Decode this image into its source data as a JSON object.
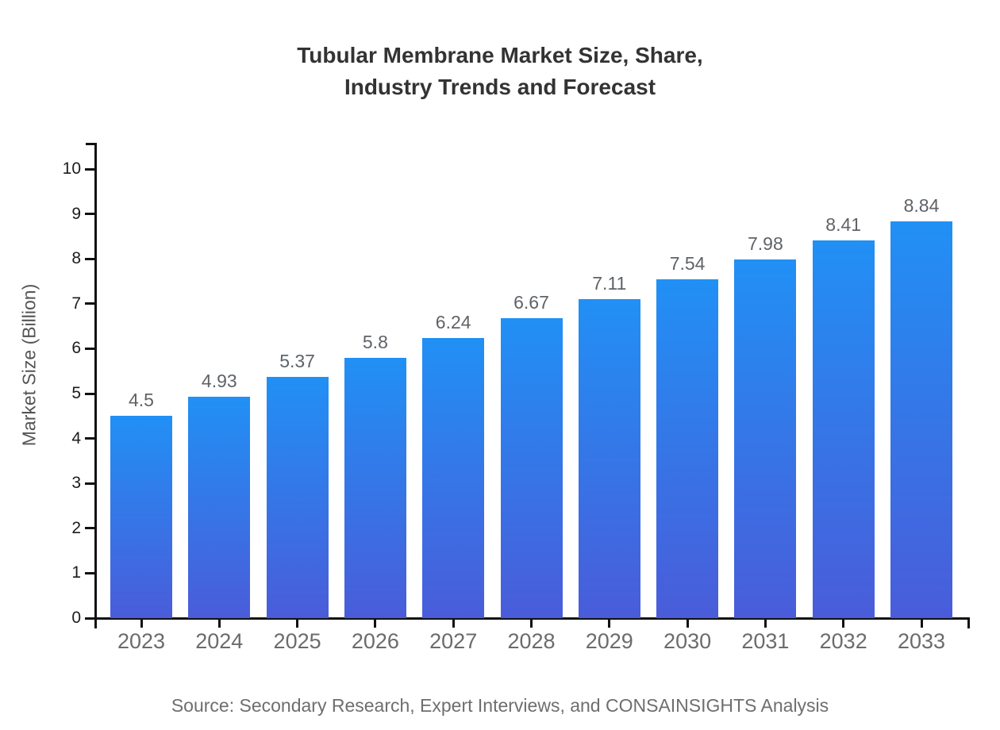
{
  "chart_data": {
    "type": "bar",
    "title": "Tubular Membrane Market Size, Share, Industry Trends and Forecast",
    "title_lines": [
      "Tubular Membrane Market Size, Share,",
      "Industry Trends and Forecast"
    ],
    "categories": [
      "2023",
      "2024",
      "2025",
      "2026",
      "2027",
      "2028",
      "2029",
      "2030",
      "2031",
      "2032",
      "2033"
    ],
    "values": [
      4.5,
      4.93,
      5.37,
      5.8,
      6.24,
      6.67,
      7.11,
      7.54,
      7.98,
      8.41,
      8.84
    ],
    "value_labels": [
      "4.5",
      "4.93",
      "5.37",
      "5.8",
      "6.24",
      "6.67",
      "7.11",
      "7.54",
      "7.98",
      "8.41",
      "8.84"
    ],
    "xlabel": "",
    "ylabel": "Market Size (Billion)",
    "ylim": [
      0,
      10
    ],
    "yticks": [
      0,
      1,
      2,
      3,
      4,
      5,
      6,
      7,
      8,
      9,
      10
    ],
    "grid": false,
    "legend": false,
    "bar_color_gradient": [
      "#2190f5",
      "#4a5cd9"
    ]
  },
  "source": "Source: Secondary Research, Expert Interviews, and CONSAINSIGHTS Analysis",
  "colors": {
    "background": "#ffffff",
    "bar_top": "#2190f5",
    "bar_bottom": "#4a5cd9",
    "axis": "#111111",
    "title_text": "#333333",
    "value_label": "#5f6368",
    "year_label": "#6b6b6b",
    "ytick_label": "#1c1c1c",
    "ylabel_text": "#555555",
    "source_text": "#6e6e6e"
  }
}
